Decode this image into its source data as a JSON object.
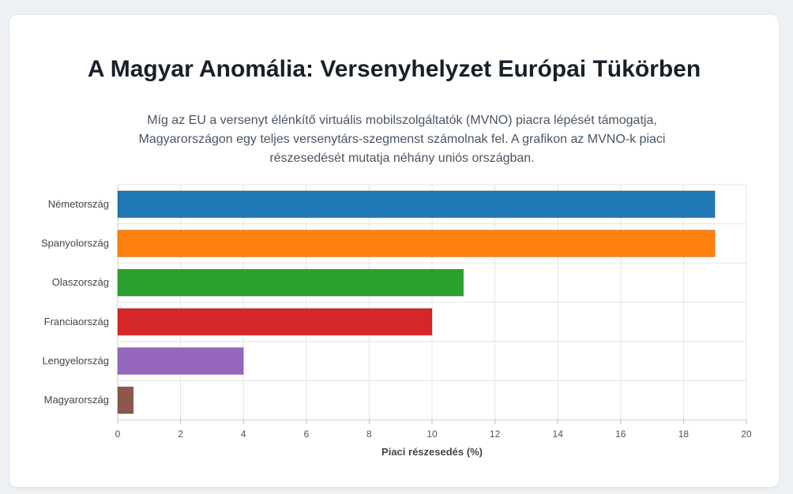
{
  "title": "A Magyar Anomália: Versenyhelyzet Európai Tükörben",
  "subtitle": "Míg az EU a versenyt élénkítő virtuális mobilszolgáltatók (MVNO) piacra lépését támogatja, Magyarországon egy teljes versenytárs-szegmenst számolnak fel. A grafikon az MVNO-k piaci részesedését mutatja néhány uniós országban.",
  "chart_data": {
    "type": "bar",
    "orientation": "horizontal",
    "categories": [
      "Németország",
      "Spanyolország",
      "Olaszország",
      "Franciaország",
      "Lengyelország",
      "Magyarország"
    ],
    "values": [
      19,
      19,
      11,
      10,
      4,
      0.5
    ],
    "colors": [
      "#1f77b4",
      "#ff7f0e",
      "#2ca02c",
      "#d62728",
      "#9467bd",
      "#8c564b"
    ],
    "xlabel": "Piaci részesedés (%)",
    "ylabel": "",
    "xlim": [
      0,
      20
    ],
    "xticks": [
      0,
      2,
      4,
      6,
      8,
      10,
      12,
      14,
      16,
      18,
      20
    ],
    "grid": true,
    "legend": "none"
  }
}
